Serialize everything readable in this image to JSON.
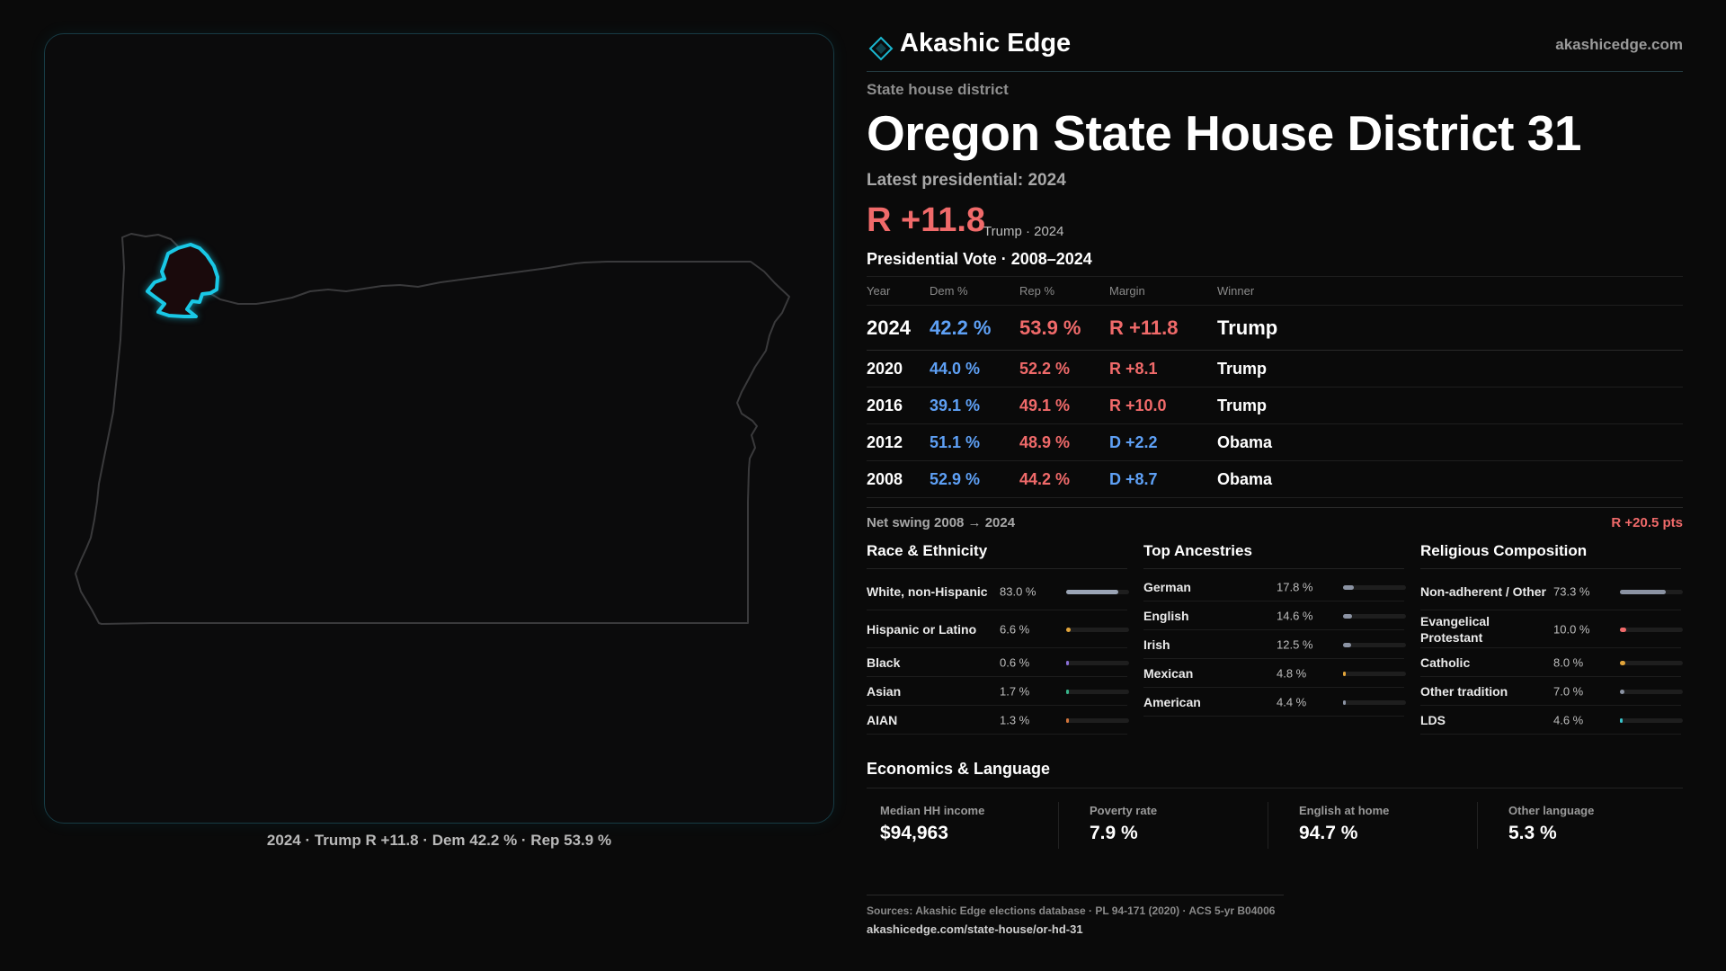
{
  "brand": {
    "name": "Akashic Edge",
    "url": "akashicedge.com",
    "icon": "diamond-icon",
    "accent": "#1ab7d0"
  },
  "header": {
    "kicker": "State house district",
    "title": "Oregon State House District 31",
    "latest": "Latest presidential: 2024",
    "margin": "R +11.8",
    "margin_sub": "Trump · 2024"
  },
  "map": {
    "caption": "2024 · Trump R +11.8 · Dem 42.2 % · Rep 53.9 %",
    "state": "Oregon",
    "highlight_color": "#19c8e6"
  },
  "vote_table": {
    "title": "Presidential Vote · 2008–2024",
    "columns": [
      "Year",
      "Dem %",
      "Rep %",
      "Margin",
      "Winner"
    ],
    "rows": [
      {
        "year": "2024",
        "dem": "42.2 %",
        "rep": "53.9 %",
        "margin": "R +11.8",
        "party": "R",
        "winner": "Trump"
      },
      {
        "year": "2020",
        "dem": "44.0 %",
        "rep": "52.2 %",
        "margin": "R +8.1",
        "party": "R",
        "winner": "Trump"
      },
      {
        "year": "2016",
        "dem": "39.1 %",
        "rep": "49.1 %",
        "margin": "R +10.0",
        "party": "R",
        "winner": "Trump"
      },
      {
        "year": "2012",
        "dem": "51.1 %",
        "rep": "48.9 %",
        "margin": "D +2.2",
        "party": "D",
        "winner": "Obama"
      },
      {
        "year": "2008",
        "dem": "52.9 %",
        "rep": "44.2 %",
        "margin": "D +8.7",
        "party": "D",
        "winner": "Obama"
      }
    ]
  },
  "swing": {
    "label": "Net swing 2008 → 2024",
    "value": "R +20.5 pts"
  },
  "race": {
    "title": "Race & Ethnicity",
    "items": [
      {
        "label": "White, non-Hispanic",
        "value": "83.0 %",
        "share": 0.83,
        "color": "#9aa4b5"
      },
      {
        "label": "Hispanic or Latino",
        "value": "6.6 %",
        "share": 0.066,
        "color": "#e2a43a"
      },
      {
        "label": "Black",
        "value": "0.6 %",
        "share": 0.006,
        "color": "#8a6fd6"
      },
      {
        "label": "Asian",
        "value": "1.7 %",
        "share": 0.017,
        "color": "#37b58a"
      },
      {
        "label": "AIAN",
        "value": "1.3 %",
        "share": 0.013,
        "color": "#d2743a"
      }
    ]
  },
  "ancestry": {
    "title": "Top Ancestries",
    "items": [
      {
        "label": "German",
        "value": "17.8 %",
        "share": 0.178,
        "color": "#8b93a3"
      },
      {
        "label": "English",
        "value": "14.6 %",
        "share": 0.146,
        "color": "#8b93a3"
      },
      {
        "label": "Irish",
        "value": "12.5 %",
        "share": 0.125,
        "color": "#8b93a3"
      },
      {
        "label": "Mexican",
        "value": "4.8 %",
        "share": 0.048,
        "color": "#e2a43a"
      },
      {
        "label": "American",
        "value": "4.4 %",
        "share": 0.044,
        "color": "#8b93a3"
      }
    ]
  },
  "religion": {
    "title": "Religious Composition",
    "items": [
      {
        "label": "Non-adherent / Other",
        "value": "73.3 %",
        "share": 0.733,
        "color": "#8b93a3"
      },
      {
        "label": "Evangelical Protestant",
        "value": "10.0 %",
        "share": 0.1,
        "color": "#f06a6a"
      },
      {
        "label": "Catholic",
        "value": "8.0 %",
        "share": 0.08,
        "color": "#e2a43a"
      },
      {
        "label": "Other tradition",
        "value": "7.0 %",
        "share": 0.07,
        "color": "#8b93a3"
      },
      {
        "label": "LDS",
        "value": "4.6 %",
        "share": 0.046,
        "color": "#38c2c9"
      }
    ]
  },
  "economics": {
    "title": "Economics & Language",
    "items": [
      {
        "label": "Median HH income",
        "value": "$94,963"
      },
      {
        "label": "Poverty rate",
        "value": "7.9 %"
      },
      {
        "label": "English at home",
        "value": "94.7 %"
      },
      {
        "label": "Other language",
        "value": "5.3 %"
      }
    ]
  },
  "sources": {
    "text": "Sources: Akashic Edge elections database · PL 94-171 (2020) · ACS 5-yr B04006",
    "url": "akashicedge.com/state-house/or-hd-31"
  }
}
